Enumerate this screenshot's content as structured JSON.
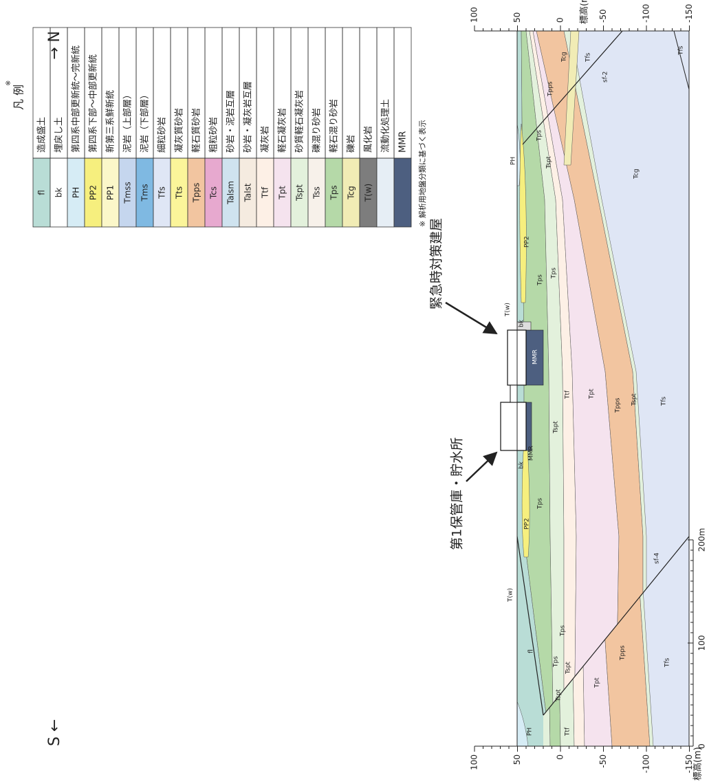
{
  "legend": {
    "title": "凡 例",
    "note_mark": "※",
    "rows": [
      {
        "code": "fl",
        "description": "造成盛土",
        "color": "#b9ddd6"
      },
      {
        "code": "bk",
        "description": "埋戻し土",
        "color": "#ffffff"
      },
      {
        "code": "PH",
        "description": "第四系中部更新統～完新統",
        "color": "#d6ecf5"
      },
      {
        "code": "PP2",
        "description": "第四系下部～中部更新統",
        "color": "#f6ef7e"
      },
      {
        "code": "PP1",
        "description": "新第三系鮮新統",
        "color": "#fbf7c9"
      },
      {
        "code": "Tmss",
        "description": "泥岩（上部層）",
        "color": "#c5d6ee"
      },
      {
        "code": "Tms",
        "description": "泥岩（下部層）",
        "color": "#7fb9e2"
      },
      {
        "code": "Tfs",
        "description": "細粒砂岩",
        "color": "#dfe6f5"
      },
      {
        "code": "Tts",
        "description": "凝灰質砂岩",
        "color": "#fbf59a"
      },
      {
        "code": "Tpps",
        "description": "軽石質砂岩",
        "color": "#f2c5a0"
      },
      {
        "code": "Tcs",
        "description": "粗粒砂岩",
        "color": "#e7a9cf"
      },
      {
        "code": "Talsm",
        "description": "砂岩・泥岩互層",
        "color": "#cfe3ef"
      },
      {
        "code": "Talst",
        "description": "砂岩・凝灰岩互層",
        "color": "#f5ebe0"
      },
      {
        "code": "Ttf",
        "description": "凝灰岩",
        "color": "#fdf0e6"
      },
      {
        "code": "Tpt",
        "description": "軽石凝灰岩",
        "color": "#f5e3ee"
      },
      {
        "code": "Tspt",
        "description": "砂質軽石凝灰岩",
        "color": "#e3f1dc"
      },
      {
        "code": "Tss",
        "description": "礫混り砂岩",
        "color": "#f7f1ea"
      },
      {
        "code": "Tps",
        "description": "軽石混り砂岩",
        "color": "#b5d9a8"
      },
      {
        "code": "Tcg",
        "description": "礫岩",
        "color": "#f1ecb5"
      },
      {
        "code": "T(w)",
        "description": "風化岩",
        "color": "#7d7d7d"
      },
      {
        "description": "流動化処理土",
        "color": "#e6eef5"
      },
      {
        "description": "MMR",
        "color": "#4d5f80"
      }
    ],
    "footnote": "※ 解析用地盤分類に基づく表示"
  },
  "section": {
    "south": "S ←",
    "north": "→ N",
    "elevation_label": "標高(m)",
    "elevation_ticks": [
      100,
      50,
      0,
      -50,
      -100,
      -150
    ],
    "distance_ticks": [
      0,
      100,
      {
        "value": 200,
        "label": "200m"
      }
    ],
    "buildings": [
      "第1保管庫・貯水所",
      "緊急時対策建屋"
    ],
    "labels": [
      "PH",
      "fl",
      "Ttf",
      "Tspt",
      "Tps",
      "Tspt",
      "Tps",
      "Tpt",
      "Tpps",
      "Tfs",
      "sf-4",
      "T(w)",
      "PP2",
      "Tps",
      "bk",
      "MMR",
      "Tspt",
      "Ttf",
      "Tpt",
      "Tpps",
      "Tspt",
      "Tfs",
      "MMR",
      "bk",
      "T(w)",
      "Tps",
      "Tps",
      "PP2",
      "PH",
      "Tspt",
      "Tps",
      "Tcg",
      "Tpps",
      "Tcg",
      "Tfs",
      "sf-2",
      "Tfs"
    ]
  }
}
